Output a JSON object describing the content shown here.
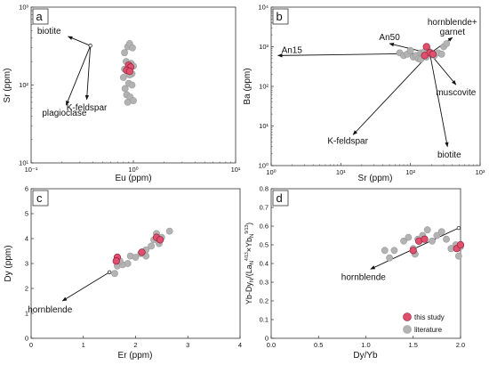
{
  "colors": {
    "this_study": "#e0506e",
    "literature": "#b3b3b3"
  },
  "legend": {
    "this_study": "this study",
    "literature": "literature"
  },
  "chart_data": [
    {
      "panel": "a",
      "type": "scatter",
      "xlabel": "Eu (ppm)",
      "ylabel": "Sr (ppm)",
      "xscale": "log",
      "yscale": "log",
      "xlim": [
        0.1,
        10
      ],
      "ylim": [
        10,
        1000
      ],
      "xticks": [
        "10⁻¹",
        "10⁰",
        "10¹"
      ],
      "yticks": [
        "10¹",
        "10²",
        "10³"
      ],
      "series": [
        {
          "name": "literature",
          "color": "#b3b3b3",
          "points": [
            [
              0.82,
              260
            ],
            [
              0.88,
              310
            ],
            [
              0.92,
              340
            ],
            [
              0.98,
              300
            ],
            [
              0.85,
              200
            ],
            [
              0.95,
              190
            ],
            [
              1.0,
              175
            ],
            [
              0.82,
              160
            ],
            [
              0.87,
              150
            ],
            [
              0.97,
              140
            ],
            [
              0.92,
              135
            ],
            [
              0.8,
              125
            ],
            [
              0.9,
              105
            ],
            [
              0.97,
              100
            ],
            [
              0.83,
              90
            ],
            [
              0.86,
              75
            ],
            [
              0.93,
              70
            ],
            [
              1.0,
              63
            ],
            [
              0.88,
              60
            ]
          ]
        },
        {
          "name": "this study",
          "color": "#e0506e",
          "points": [
            [
              0.9,
              180
            ],
            [
              0.94,
              170
            ],
            [
              0.86,
              155
            ],
            [
              0.92,
              150
            ]
          ]
        }
      ],
      "vectors": [
        {
          "label": "biotite",
          "from": [
            0.38,
            320
          ],
          "to": [
            0.23,
            420
          ]
        },
        {
          "label": "plagioclase",
          "from": [
            0.38,
            320
          ],
          "to": [
            0.22,
            55
          ]
        },
        {
          "label": "K-feldspar",
          "from": [
            0.38,
            320
          ],
          "to": [
            0.35,
            65
          ]
        }
      ]
    },
    {
      "panel": "b",
      "type": "scatter",
      "xlabel": "Sr (ppm)",
      "ylabel": "Ba (ppm)",
      "xscale": "log",
      "yscale": "log",
      "xlim": [
        1,
        1000
      ],
      "ylim": [
        1,
        10000
      ],
      "xticks": [
        "10⁰",
        "10¹",
        "10²",
        "10³"
      ],
      "yticks": [
        "10⁰",
        "10¹",
        "10²",
        "10³",
        "10⁴"
      ],
      "series": [
        {
          "name": "literature",
          "color": "#b3b3b3",
          "points": [
            [
              70,
              700
            ],
            [
              80,
              600
            ],
            [
              90,
              650
            ],
            [
              100,
              800
            ],
            [
              110,
              550
            ],
            [
              120,
              600
            ],
            [
              130,
              500
            ],
            [
              140,
              700
            ],
            [
              150,
              650
            ],
            [
              160,
              750
            ],
            [
              180,
              800
            ],
            [
              200,
              700
            ],
            [
              220,
              600
            ],
            [
              250,
              700
            ],
            [
              280,
              650
            ],
            [
              300,
              1000
            ],
            [
              330,
              1200
            ],
            [
              170,
              550
            ],
            [
              140,
              480
            ]
          ]
        },
        {
          "name": "this study",
          "color": "#e0506e",
          "points": [
            [
              170,
              1000
            ],
            [
              190,
              700
            ],
            [
              210,
              650
            ],
            [
              160,
              600
            ]
          ]
        }
      ],
      "vectors": [
        {
          "label": "An50",
          "from": [
            190,
            680
          ],
          "to": [
            50,
            1200
          ]
        },
        {
          "label": "An15",
          "from": [
            190,
            680
          ],
          "to": [
            1.25,
            600
          ]
        },
        {
          "label": "hornblende+\ngarnet",
          "from": [
            190,
            680
          ],
          "to": [
            400,
            1700
          ]
        },
        {
          "label": "muscovite",
          "from": [
            190,
            680
          ],
          "to": [
            450,
            110
          ]
        },
        {
          "label": "K-feldspar",
          "from": [
            190,
            680
          ],
          "to": [
            15,
            6
          ]
        },
        {
          "label": "biotite",
          "from": [
            190,
            680
          ],
          "to": [
            340,
            3
          ]
        }
      ]
    },
    {
      "panel": "c",
      "type": "scatter",
      "xlabel": "Er (ppm)",
      "ylabel": "Dy (ppm)",
      "xlim": [
        0,
        4
      ],
      "ylim": [
        0,
        6
      ],
      "xticks": [
        "0",
        "1",
        "2",
        "3",
        "4"
      ],
      "yticks": [
        "0",
        "1",
        "2",
        "3",
        "4",
        "5",
        "6"
      ],
      "series": [
        {
          "name": "literature",
          "color": "#b3b3b3",
          "points": [
            [
              1.6,
              2.6
            ],
            [
              1.65,
              2.9
            ],
            [
              1.75,
              2.95
            ],
            [
              1.85,
              3.0
            ],
            [
              1.9,
              3.3
            ],
            [
              2.0,
              3.25
            ],
            [
              2.1,
              3.4
            ],
            [
              2.2,
              3.55
            ],
            [
              2.3,
              3.7
            ],
            [
              2.35,
              3.95
            ],
            [
              2.4,
              4.2
            ],
            [
              2.5,
              4.05
            ],
            [
              2.65,
              4.3
            ],
            [
              2.45,
              3.8
            ],
            [
              2.2,
              3.3
            ],
            [
              1.7,
              3.1
            ]
          ]
        },
        {
          "name": "this study",
          "color": "#e0506e",
          "points": [
            [
              1.65,
              3.25
            ],
            [
              1.63,
              3.1
            ],
            [
              2.12,
              3.45
            ],
            [
              2.4,
              4.05
            ],
            [
              2.47,
              3.95
            ]
          ]
        }
      ],
      "vectors": [
        {
          "label": "hornblende",
          "from": [
            1.5,
            2.65
          ],
          "to": [
            0.6,
            1.5
          ]
        }
      ]
    },
    {
      "panel": "d",
      "type": "scatter",
      "xlabel": "Dy/Yb",
      "ylabel": "Yb-Dyₙ/(Laₙ^4/13×Ybₙ^9/13)",
      "xlim": [
        0,
        2
      ],
      "ylim": [
        0,
        0.8
      ],
      "xticks": [
        "0.0",
        "0.5",
        "1.0",
        "1.5",
        "2.0"
      ],
      "yticks": [
        "0",
        "0.1",
        "0.2",
        "0.3",
        "0.4",
        "0.5",
        "0.6",
        "0.7",
        "0.8"
      ],
      "series": [
        {
          "name": "literature",
          "color": "#b3b3b3",
          "points": [
            [
              1.2,
              0.47
            ],
            [
              1.25,
              0.43
            ],
            [
              1.3,
              0.47
            ],
            [
              1.4,
              0.52
            ],
            [
              1.45,
              0.54
            ],
            [
              1.5,
              0.48
            ],
            [
              1.55,
              0.53
            ],
            [
              1.6,
              0.55
            ],
            [
              1.65,
              0.58
            ],
            [
              1.7,
              0.52
            ],
            [
              1.75,
              0.55
            ],
            [
              1.8,
              0.57
            ],
            [
              1.85,
              0.53
            ],
            [
              1.9,
              0.48
            ],
            [
              1.95,
              0.5
            ],
            [
              2.0,
              0.49
            ],
            [
              1.52,
              0.45
            ],
            [
              1.98,
              0.44
            ]
          ]
        },
        {
          "name": "this study",
          "color": "#e0506e",
          "points": [
            [
              1.5,
              0.47
            ],
            [
              1.56,
              0.52
            ],
            [
              1.62,
              0.53
            ],
            [
              1.96,
              0.48
            ],
            [
              2.0,
              0.5
            ]
          ]
        }
      ],
      "vectors": [
        {
          "label": "hornblende",
          "from": [
            1.98,
            0.59
          ],
          "to": [
            1.05,
            0.37
          ]
        }
      ]
    }
  ]
}
